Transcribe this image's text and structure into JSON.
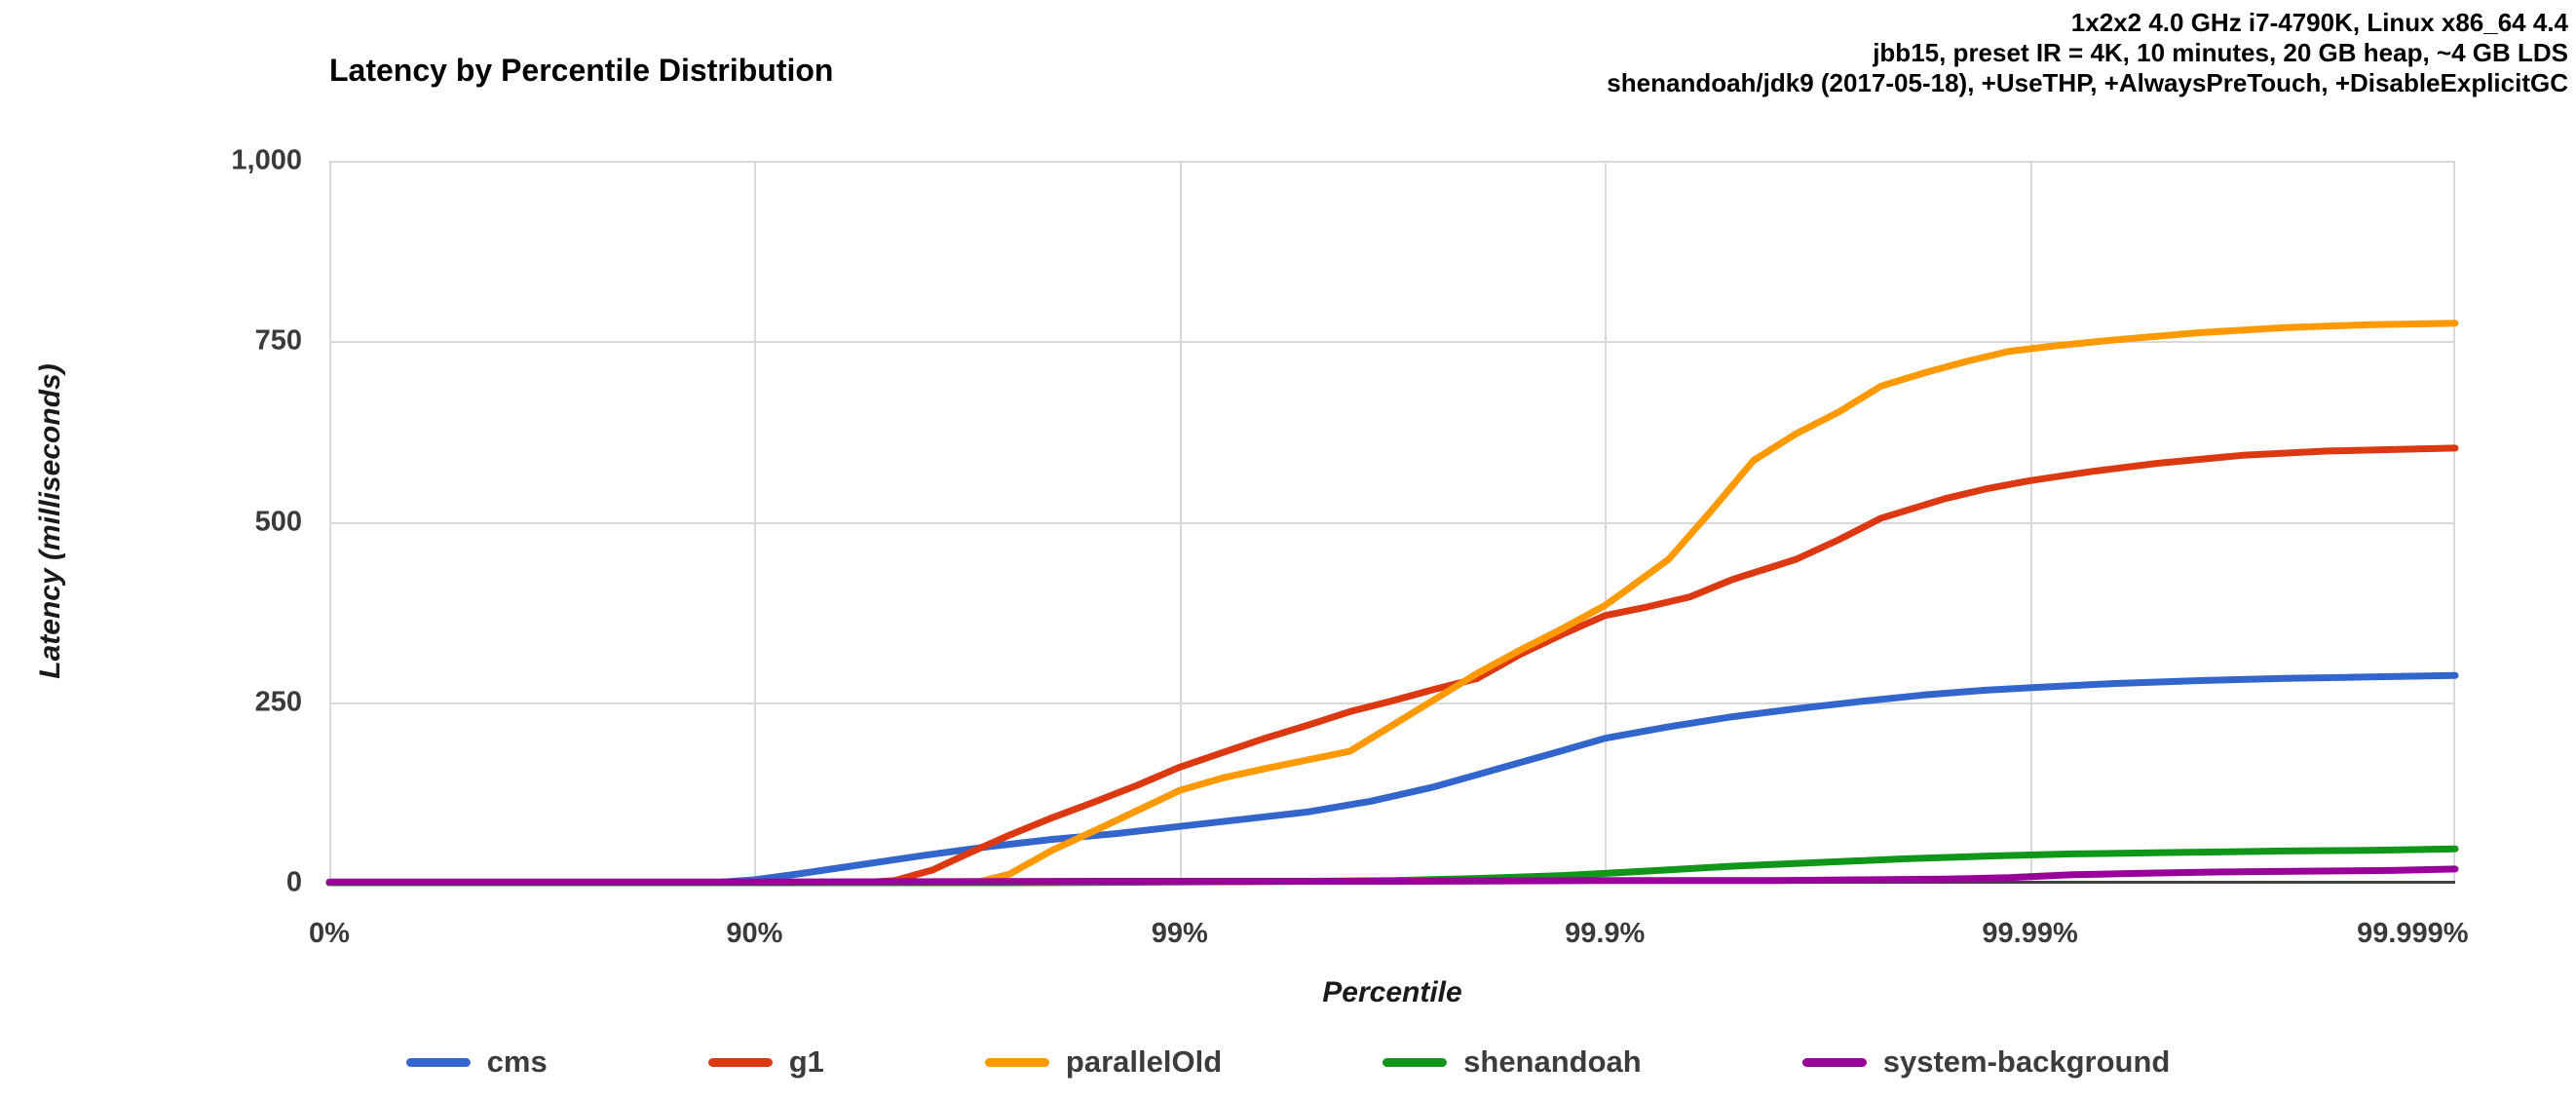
{
  "header": {
    "annotation_lines": [
      "1x2x2 4.0 GHz i7-4790K, Linux x86_64 4.4",
      "jbb15, preset IR = 4K, 10 minutes, 20 GB heap, ~4 GB LDS",
      "shenandoah/jdk9 (2017-05-18), +UseTHP, +AlwaysPreTouch, +DisableExplicitGC"
    ]
  },
  "chart_data": {
    "type": "line",
    "title": "Latency by Percentile Distribution",
    "xlabel": "Percentile",
    "ylabel": "Latency (milliseconds)",
    "x_scale": "percentile-log, equal spacing per decade of (1-p); x unit below = number of nines",
    "x_tick_labels": [
      "0%",
      "90%",
      "99%",
      "99.9%",
      "99.99%",
      "99.999%"
    ],
    "y_tick_labels": [
      "1,000",
      "750",
      "500",
      "250",
      "0"
    ],
    "y_tick_values": [
      1000,
      750,
      500,
      250,
      0
    ],
    "xlim_nines": [
      0,
      5
    ],
    "ylim": [
      0,
      1000
    ],
    "grid": true,
    "legend_position": "bottom",
    "gridline_color": "#d9d9d9",
    "axis_line_color": "#424242",
    "series": [
      {
        "name": "cms",
        "color": "#3366CC",
        "points": [
          [
            0,
            0
          ],
          [
            0.6,
            0
          ],
          [
            0.9,
            0
          ],
          [
            1.0,
            4
          ],
          [
            1.1,
            12
          ],
          [
            1.25,
            25
          ],
          [
            1.4,
            38
          ],
          [
            1.55,
            50
          ],
          [
            1.7,
            60
          ],
          [
            1.85,
            68
          ],
          [
            2.0,
            78
          ],
          [
            2.15,
            88
          ],
          [
            2.3,
            98
          ],
          [
            2.45,
            113
          ],
          [
            2.6,
            133
          ],
          [
            2.75,
            158
          ],
          [
            2.9,
            183
          ],
          [
            3.0,
            200
          ],
          [
            3.15,
            216
          ],
          [
            3.3,
            230
          ],
          [
            3.45,
            241
          ],
          [
            3.6,
            251
          ],
          [
            3.75,
            260
          ],
          [
            3.9,
            267
          ],
          [
            4.0,
            270
          ],
          [
            4.2,
            276
          ],
          [
            4.4,
            280
          ],
          [
            4.6,
            283
          ],
          [
            4.8,
            285
          ],
          [
            5.0,
            287
          ]
        ]
      },
      {
        "name": "g1",
        "color": "#DC3912",
        "points": [
          [
            0,
            0
          ],
          [
            0.9,
            0
          ],
          [
            1.25,
            0
          ],
          [
            1.33,
            3
          ],
          [
            1.42,
            18
          ],
          [
            1.5,
            40
          ],
          [
            1.6,
            66
          ],
          [
            1.7,
            90
          ],
          [
            1.8,
            112
          ],
          [
            1.9,
            135
          ],
          [
            2.0,
            160
          ],
          [
            2.1,
            180
          ],
          [
            2.2,
            200
          ],
          [
            2.3,
            218
          ],
          [
            2.4,
            237
          ],
          [
            2.5,
            252
          ],
          [
            2.6,
            268
          ],
          [
            2.7,
            283
          ],
          [
            2.8,
            316
          ],
          [
            2.9,
            344
          ],
          [
            3.0,
            370
          ],
          [
            3.1,
            382
          ],
          [
            3.2,
            396
          ],
          [
            3.3,
            420
          ],
          [
            3.45,
            448
          ],
          [
            3.55,
            475
          ],
          [
            3.65,
            505
          ],
          [
            3.8,
            532
          ],
          [
            3.9,
            546
          ],
          [
            4.0,
            557
          ],
          [
            4.15,
            570
          ],
          [
            4.3,
            581
          ],
          [
            4.5,
            592
          ],
          [
            4.7,
            598
          ],
          [
            5.0,
            602
          ]
        ]
      },
      {
        "name": "parallelOld",
        "color": "#FF9900",
        "points": [
          [
            0,
            0
          ],
          [
            0.9,
            0
          ],
          [
            1.52,
            0
          ],
          [
            1.6,
            12
          ],
          [
            1.7,
            45
          ],
          [
            1.8,
            72
          ],
          [
            1.9,
            100
          ],
          [
            2.0,
            128
          ],
          [
            2.1,
            145
          ],
          [
            2.2,
            158
          ],
          [
            2.3,
            170
          ],
          [
            2.4,
            182
          ],
          [
            2.5,
            218
          ],
          [
            2.6,
            254
          ],
          [
            2.7,
            290
          ],
          [
            2.8,
            322
          ],
          [
            2.9,
            352
          ],
          [
            3.0,
            384
          ],
          [
            3.05,
            405
          ],
          [
            3.15,
            448
          ],
          [
            3.25,
            515
          ],
          [
            3.35,
            585
          ],
          [
            3.45,
            622
          ],
          [
            3.55,
            652
          ],
          [
            3.65,
            688
          ],
          [
            3.75,
            706
          ],
          [
            3.85,
            722
          ],
          [
            3.95,
            736
          ],
          [
            4.05,
            743
          ],
          [
            4.2,
            752
          ],
          [
            4.4,
            762
          ],
          [
            4.6,
            769
          ],
          [
            4.8,
            773
          ],
          [
            5.0,
            775
          ]
        ]
      },
      {
        "name": "shenandoah",
        "color": "#109618",
        "points": [
          [
            0,
            0
          ],
          [
            1.0,
            0
          ],
          [
            1.6,
            0
          ],
          [
            2.0,
            1
          ],
          [
            2.3,
            2
          ],
          [
            2.5,
            3
          ],
          [
            2.7,
            6
          ],
          [
            2.9,
            10
          ],
          [
            3.0,
            13
          ],
          [
            3.15,
            18
          ],
          [
            3.3,
            23
          ],
          [
            3.5,
            28
          ],
          [
            3.7,
            33
          ],
          [
            3.9,
            37
          ],
          [
            4.1,
            40
          ],
          [
            4.35,
            42
          ],
          [
            4.6,
            44
          ],
          [
            4.8,
            45
          ],
          [
            5.0,
            47
          ]
        ]
      },
      {
        "name": "system-background",
        "color": "#990099",
        "points": [
          [
            0,
            1
          ],
          [
            1.0,
            1
          ],
          [
            1.8,
            2
          ],
          [
            2.5,
            2
          ],
          [
            3.0,
            3
          ],
          [
            3.4,
            3
          ],
          [
            3.6,
            4
          ],
          [
            3.8,
            5
          ],
          [
            3.95,
            7
          ],
          [
            4.1,
            11
          ],
          [
            4.25,
            13
          ],
          [
            4.45,
            15
          ],
          [
            4.65,
            16
          ],
          [
            4.85,
            17
          ],
          [
            5.0,
            19
          ]
        ]
      }
    ]
  }
}
